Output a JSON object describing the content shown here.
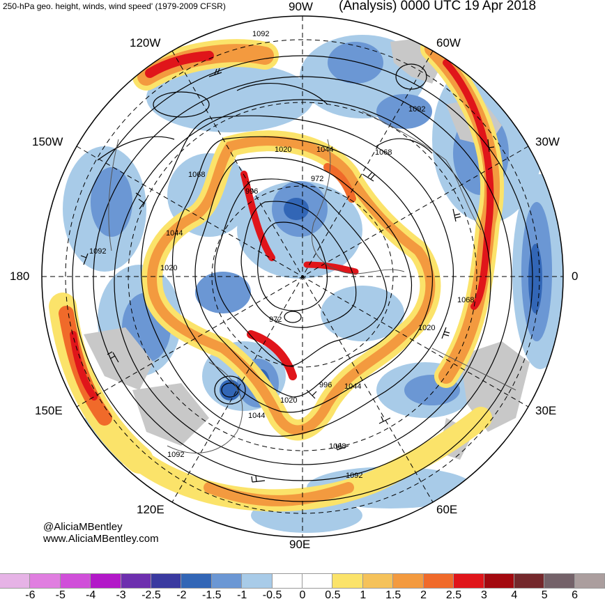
{
  "header": {
    "title_left": "250-hPa geo. height, winds, wind speed' (1979-2009 CFSR)",
    "title_right": "(Analysis) 0000 UTC 19 Apr 2018"
  },
  "longitude_labels": {
    "lon_90w": "90W",
    "lon_120w": "120W",
    "lon_60w": "60W",
    "lon_150w": "150W",
    "lon_30w": "30W",
    "lon_180": "180",
    "lon_0": "0",
    "lon_150e": "150E",
    "lon_30e": "30E",
    "lon_120e": "120E",
    "lon_60e": "60E",
    "lon_90e": "90E"
  },
  "contour_labels": [
    "1092",
    "1092",
    "1068",
    "1020",
    "1044",
    "972",
    "1068",
    "996",
    "1044",
    "1092",
    "1020",
    "1068",
    "1020",
    "972",
    "1020",
    "996",
    "1044",
    "1044",
    "1068",
    "1092",
    "1092",
    "1068"
  ],
  "credits": {
    "handle": "@AliciaMBentley",
    "website": "www.AliciaMBentley.com"
  },
  "colorbar": {
    "colors": [
      "#e6b3e6",
      "#e07ee0",
      "#d04fd9",
      "#b218c8",
      "#6d2fae",
      "#3a3aa0",
      "#3266b6",
      "#6b97d4",
      "#a8cbe8",
      "#ffffff",
      "#ffffff",
      "#fbe36a",
      "#f5c25a",
      "#f39a3f",
      "#f06a2a",
      "#e0151a",
      "#a3090f",
      "#74282c",
      "#746269",
      "#ab9e9e"
    ],
    "ticks": [
      "-6",
      "-5",
      "-4",
      "-3",
      "-2.5",
      "-2",
      "-1.5",
      "-1",
      "-0.5",
      "0",
      "0.5",
      "1",
      "1.5",
      "2",
      "2.5",
      "3",
      "4",
      "5",
      "6"
    ]
  },
  "theme": {
    "jet_strong": "#e0151a",
    "jet_mid": "#f39a3f",
    "jet_weak": "#fbe36a",
    "anomaly_neg_strong": "#3266b6",
    "anomaly_neg_weak": "#a8cbe8",
    "land": "#c8c8c8"
  }
}
